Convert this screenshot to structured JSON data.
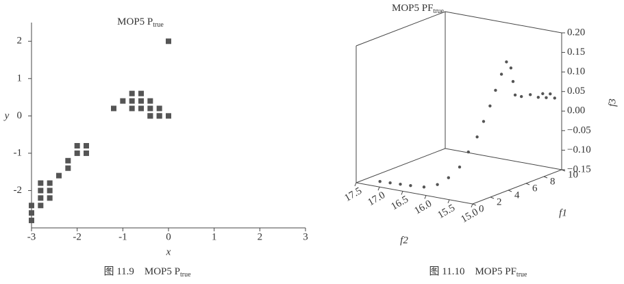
{
  "chart_data": [
    {
      "type": "scatter",
      "title": "MOP5 P",
      "title_sub": "true",
      "xlabel": "x",
      "ylabel": "y",
      "x": [
        0,
        0,
        -0.2,
        -0.4,
        -1.2,
        -1.0,
        -0.8,
        -0.6,
        -0.8,
        -0.6,
        -0.4,
        -0.8,
        -0.6,
        -0.4,
        -0.2,
        -0.4,
        -0.2,
        -1.8,
        -2.0,
        -1.8,
        -2.0,
        -2.2,
        -2.2,
        -2.4,
        -2.6,
        -2.8,
        -2.6,
        -2.8,
        -2.8,
        -2.6,
        -2.8,
        -3.0,
        -3.0,
        -3.0
      ],
      "y": [
        2.0,
        0,
        0,
        0,
        0.2,
        0.4,
        0.6,
        0.6,
        0.4,
        0.4,
        0.4,
        0.2,
        0.2,
        0.2,
        0.2,
        0,
        0,
        -0.8,
        -0.8,
        -1.0,
        -1.0,
        -1.2,
        -1.4,
        -1.6,
        -1.8,
        -1.8,
        -2.0,
        -2.0,
        -2.2,
        -2.2,
        -2.4,
        -2.4,
        -2.6,
        -2.8
      ],
      "color": "#555555",
      "xlim": [
        -3,
        3
      ],
      "ylim": [
        -3,
        2.5
      ],
      "xticks": [
        -3,
        -2,
        -1,
        0,
        1,
        2,
        3
      ],
      "yticks": [
        -2,
        -1,
        0,
        1,
        2
      ],
      "caption": "图 11.9　MOP5 P",
      "caption_sub": "true"
    },
    {
      "type": "scatter3d",
      "title": "MOP5 PF",
      "title_sub": "true",
      "xlabel": "f1",
      "ylabel": "f2",
      "zlabel": "f3",
      "x": [
        1.1,
        1.2,
        1.3,
        1.4,
        1.6,
        1.8,
        2.0,
        2.2,
        2.4,
        2.6,
        2.8,
        3.0,
        3.2,
        3.5,
        3.8,
        4.3,
        4.8,
        5.3,
        6.0,
        7.0,
        8.0,
        9.0,
        10.0,
        9.5,
        8.5
      ],
      "y": [
        17.2,
        17.0,
        16.8,
        16.6,
        16.35,
        16.1,
        15.9,
        15.7,
        15.55,
        15.4,
        15.3,
        15.2,
        15.12,
        15.05,
        15.0,
        15.0,
        15.05,
        15.1,
        15.1,
        15.1,
        15.12,
        15.14,
        15.15,
        15.15,
        15.12
      ],
      "z": [
        -0.15,
        -0.15,
        -0.15,
        -0.15,
        -0.15,
        -0.14,
        -0.12,
        -0.09,
        -0.05,
        -0.01,
        0.03,
        0.07,
        0.11,
        0.15,
        0.18,
        0.16,
        0.12,
        0.08,
        0.07,
        0.066,
        0.05,
        0.04,
        0.03,
        0.045,
        0.055
      ],
      "color": "#555555",
      "xlim": [
        0,
        10
      ],
      "ylim": [
        15,
        17.5
      ],
      "zlim": [
        -0.15,
        0.2
      ],
      "xticks": [
        0,
        2,
        4,
        6,
        8,
        10
      ],
      "yticks": [
        {
          "value": 15,
          "label": "15.0"
        },
        15.5,
        {
          "value": 16,
          "label": "16.0"
        },
        16.5,
        {
          "value": 17,
          "label": "17.0"
        },
        17.5
      ],
      "zticks": [
        {
          "value": -0.15,
          "label": "−0.15"
        },
        {
          "value": -0.1,
          "label": "−0.10"
        },
        {
          "value": -0.05,
          "label": "−0.05"
        },
        {
          "value": 0,
          "label": "0.00"
        },
        {
          "value": 0.05,
          "label": "0.05"
        },
        {
          "value": 0.1,
          "label": "0.10"
        },
        {
          "value": 0.15,
          "label": "0.15"
        },
        {
          "value": 0.2,
          "label": "0.20"
        }
      ],
      "caption": "图 11.10　MOP5 PF",
      "caption_sub": "true"
    }
  ]
}
